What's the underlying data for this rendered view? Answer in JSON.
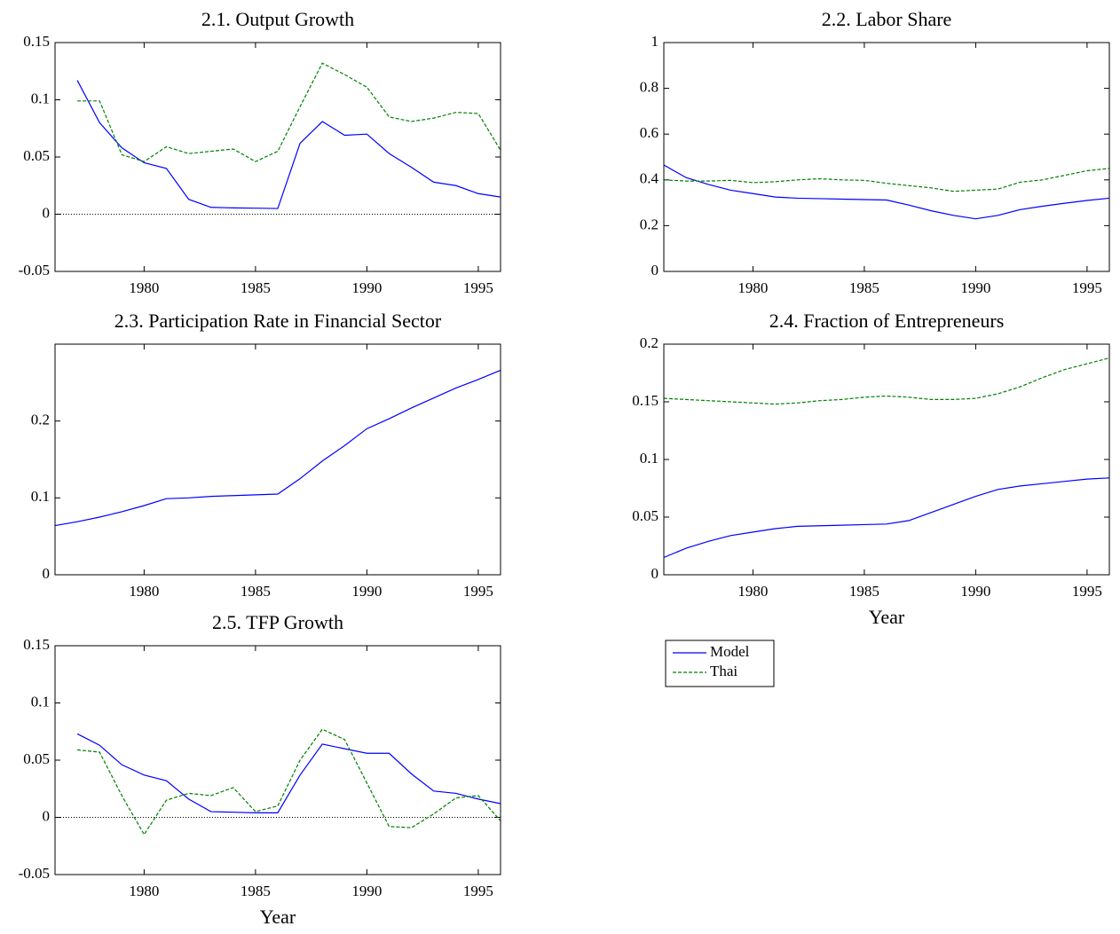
{
  "chart_data": [
    {
      "type": "line",
      "title": "2.1. Output Growth",
      "x": [
        1977,
        1978,
        1979,
        1980,
        1981,
        1982,
        1983,
        1984,
        1985,
        1986,
        1987,
        1988,
        1989,
        1990,
        1991,
        1992,
        1993,
        1994,
        1995,
        1996
      ],
      "series": [
        {
          "name": "Model",
          "color": "#0000ff",
          "linestyle": "solid",
          "values": [
            0.117,
            0.08,
            0.058,
            0.045,
            0.04,
            0.013,
            0.006,
            0.0055,
            0.0053,
            0.005,
            0.062,
            0.081,
            0.069,
            0.07,
            0.053,
            0.041,
            0.028,
            0.025,
            0.018,
            0.015
          ]
        },
        {
          "name": "Thai",
          "color": "#008000",
          "linestyle": "dashed",
          "values": [
            0.099,
            0.099,
            0.052,
            0.046,
            0.059,
            0.053,
            0.055,
            0.057,
            0.046,
            0.055,
            0.094,
            0.132,
            0.122,
            0.111,
            0.085,
            0.081,
            0.084,
            0.089,
            0.088,
            0.056
          ]
        }
      ],
      "xlim": [
        1976,
        1996
      ],
      "xticks": [
        1980,
        1985,
        1990,
        1995
      ],
      "ylim": [
        -0.05,
        0.15
      ],
      "yticks": [
        -0.05,
        0,
        0.05,
        0.1,
        0.15
      ],
      "zero_line": true
    },
    {
      "type": "line",
      "title": "2.2. Labor Share",
      "x": [
        1976,
        1977,
        1978,
        1979,
        1980,
        1981,
        1982,
        1983,
        1984,
        1985,
        1986,
        1987,
        1988,
        1989,
        1990,
        1991,
        1992,
        1993,
        1994,
        1995,
        1996
      ],
      "series": [
        {
          "name": "Model",
          "color": "#0000ff",
          "linestyle": "solid",
          "values": [
            0.465,
            0.41,
            0.38,
            0.355,
            0.34,
            0.325,
            0.32,
            0.318,
            0.316,
            0.314,
            0.312,
            0.29,
            0.265,
            0.245,
            0.23,
            0.245,
            0.27,
            0.285,
            0.298,
            0.31,
            0.32
          ]
        },
        {
          "name": "Thai",
          "color": "#008000",
          "linestyle": "dashed",
          "values": [
            0.4,
            0.395,
            0.395,
            0.398,
            0.388,
            0.392,
            0.4,
            0.405,
            0.4,
            0.398,
            0.385,
            0.375,
            0.365,
            0.35,
            0.355,
            0.36,
            0.39,
            0.4,
            0.42,
            0.44,
            0.45
          ]
        }
      ],
      "xlim": [
        1976,
        1996
      ],
      "xticks": [
        1980,
        1985,
        1990,
        1995
      ],
      "ylim": [
        0,
        1
      ],
      "yticks": [
        0,
        0.2,
        0.4,
        0.6,
        0.8,
        1
      ],
      "zero_line": false
    },
    {
      "type": "line",
      "title": "2.3. Participation Rate in Financial Sector",
      "x": [
        1976,
        1977,
        1978,
        1979,
        1980,
        1981,
        1982,
        1983,
        1984,
        1985,
        1986,
        1987,
        1988,
        1989,
        1990,
        1991,
        1992,
        1993,
        1994,
        1995,
        1996
      ],
      "series": [
        {
          "name": "Model",
          "color": "#0000ff",
          "linestyle": "solid",
          "values": [
            0.064,
            0.069,
            0.075,
            0.082,
            0.09,
            0.099,
            0.1,
            0.102,
            0.103,
            0.104,
            0.105,
            0.125,
            0.148,
            0.168,
            0.19,
            0.203,
            0.217,
            0.23,
            0.243,
            0.254,
            0.266
          ]
        }
      ],
      "xlim": [
        1976,
        1996
      ],
      "xticks": [
        1980,
        1985,
        1990,
        1995
      ],
      "ylim": [
        0,
        0.3
      ],
      "yticks": [
        0,
        0.1,
        0.2
      ],
      "zero_line": false
    },
    {
      "type": "line",
      "title": "2.4. Fraction of Entrepreneurs",
      "x_label": "Year",
      "x": [
        1976,
        1977,
        1978,
        1979,
        1980,
        1981,
        1982,
        1983,
        1984,
        1985,
        1986,
        1987,
        1988,
        1989,
        1990,
        1991,
        1992,
        1993,
        1994,
        1995,
        1996
      ],
      "series": [
        {
          "name": "Model",
          "color": "#0000ff",
          "linestyle": "solid",
          "values": [
            0.015,
            0.023,
            0.029,
            0.034,
            0.037,
            0.04,
            0.042,
            0.0425,
            0.043,
            0.0435,
            0.044,
            0.047,
            0.054,
            0.061,
            0.068,
            0.074,
            0.077,
            0.079,
            0.081,
            0.083,
            0.084
          ]
        },
        {
          "name": "Thai",
          "color": "#008000",
          "linestyle": "dashed",
          "values": [
            0.153,
            0.152,
            0.151,
            0.15,
            0.149,
            0.148,
            0.149,
            0.151,
            0.152,
            0.154,
            0.155,
            0.154,
            0.152,
            0.152,
            0.153,
            0.157,
            0.163,
            0.171,
            0.178,
            0.183,
            0.188
          ]
        }
      ],
      "xlim": [
        1976,
        1996
      ],
      "xticks": [
        1980,
        1985,
        1990,
        1995
      ],
      "ylim": [
        0,
        0.2
      ],
      "yticks": [
        0,
        0.05,
        0.1,
        0.15,
        0.2
      ],
      "zero_line": false,
      "legend": "below"
    },
    {
      "type": "line",
      "title": "2.5. TFP Growth",
      "x_label": "Year",
      "x": [
        1977,
        1978,
        1979,
        1980,
        1981,
        1982,
        1983,
        1984,
        1985,
        1986,
        1987,
        1988,
        1989,
        1990,
        1991,
        1992,
        1993,
        1994,
        1995,
        1996
      ],
      "series": [
        {
          "name": "Model",
          "color": "#0000ff",
          "linestyle": "solid",
          "values": [
            0.073,
            0.063,
            0.046,
            0.037,
            0.032,
            0.016,
            0.005,
            0.0045,
            0.004,
            0.004,
            0.037,
            0.064,
            0.06,
            0.056,
            0.056,
            0.038,
            0.023,
            0.021,
            0.016,
            0.012
          ]
        },
        {
          "name": "Thai",
          "color": "#008000",
          "linestyle": "dashed",
          "values": [
            0.059,
            0.057,
            0.019,
            -0.015,
            0.015,
            0.021,
            0.019,
            0.026,
            0.005,
            0.01,
            0.05,
            0.077,
            0.068,
            0.03,
            -0.008,
            -0.009,
            0.003,
            0.017,
            0.019,
            -0.003
          ]
        }
      ],
      "xlim": [
        1976,
        1996
      ],
      "xticks": [
        1980,
        1985,
        1990,
        1995
      ],
      "ylim": [
        -0.05,
        0.15
      ],
      "yticks": [
        -0.05,
        0,
        0.05,
        0.1,
        0.15
      ],
      "zero_line": true
    }
  ]
}
